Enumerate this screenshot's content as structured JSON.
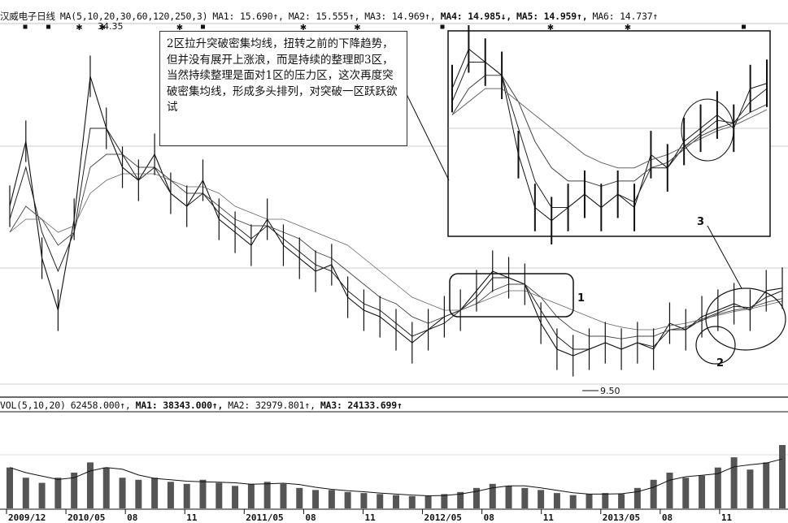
{
  "price_header": {
    "title": "汉威电子日线",
    "ma_spec": "MA(5,10,20,30,60,120,250,3)",
    "ma1": "MA1: 15.690↑,",
    "ma2": "MA2: 15.555↑,",
    "ma3": "MA3: 14.969↑,",
    "ma4": "MA4: 14.985↓,",
    "ma5": "MA5: 14.959↑,",
    "ma6": "MA6: 14.737↑"
  },
  "vol_header": {
    "spec": "VOL(5,10,20)",
    "value": "62458.000↑,",
    "ma1": "MA1: 38343.000↑,",
    "ma2": "MA2: 32979.801↑,",
    "ma3": "MA3: 24133.699↑"
  },
  "annotation": {
    "text": "2区拉升突破密集均线，扭转之前的下降趋势，但并没有展开上涨浪，而是持续的整理即3区，当然持续整理是面对1区的压力区，这次再度突破密集均线，形成多头排列，对突破一区跃跃欲试"
  },
  "labels": {
    "zone1": "1",
    "zone2": "2",
    "zone3": "3",
    "high": "34.35",
    "low": "9.50"
  },
  "x_axis": {
    "ticks": [
      "2009/12",
      "2010/05",
      "08",
      "11",
      "2011/05",
      "08",
      "11",
      "2012/05",
      "08",
      "11",
      "2013/05",
      "08",
      "11"
    ]
  },
  "colors": {
    "line": "#111111",
    "grid": "#9a9a9a",
    "mark": "#111111"
  },
  "chart_data": {
    "type": "line",
    "title": "汉威电子日线",
    "x": [
      "2009/12",
      "2010/01",
      "2010/02",
      "2010/03",
      "2010/04",
      "2010/05",
      "2010/06",
      "2010/07",
      "2010/08",
      "2010/09",
      "2010/10",
      "2010/11",
      "2010/12",
      "2011/01",
      "2011/02",
      "2011/03",
      "2011/04",
      "2011/05",
      "2011/06",
      "2011/07",
      "2011/08",
      "2011/09",
      "2011/10",
      "2011/11",
      "2011/12",
      "2012/01",
      "2012/02",
      "2012/03",
      "2012/04",
      "2012/05",
      "2012/06",
      "2012/07",
      "2012/08",
      "2012/09",
      "2012/10",
      "2012/11",
      "2012/12",
      "2013/01",
      "2013/02",
      "2013/03",
      "2013/04",
      "2013/05",
      "2013/06",
      "2013/07",
      "2013/08",
      "2013/09",
      "2013/10",
      "2013/11",
      "2013/12"
    ],
    "series": [
      {
        "values": [
          22,
          27,
          18,
          14,
          21,
          32,
          28,
          25,
          24,
          26,
          23,
          22,
          24,
          21,
          20,
          19,
          21,
          19,
          18,
          17,
          17.5,
          15,
          14,
          13.5,
          12.5,
          11.5,
          12.5,
          13.5,
          14,
          15.5,
          17,
          16.5,
          16,
          13,
          11,
          10.5,
          11,
          11.5,
          11,
          11.5,
          11,
          13,
          12.5,
          13.5,
          14,
          14.5,
          14,
          15.5,
          15.7
        ]
      },
      {
        "values": [
          21,
          25,
          20,
          17,
          20,
          28,
          28,
          26,
          24,
          25,
          23,
          22,
          23,
          21.5,
          20.5,
          19.5,
          20.5,
          19.5,
          18.5,
          17.5,
          17,
          15.5,
          14.5,
          14,
          13,
          12,
          12.5,
          13,
          14,
          15,
          16.5,
          16.5,
          16,
          14,
          12,
          11,
          11,
          11.5,
          11,
          11.5,
          11.2,
          12.5,
          12.5,
          13.3,
          13.8,
          14.3,
          14.2,
          15,
          15.5
        ]
      },
      {
        "values": [
          20,
          22,
          21,
          19,
          20,
          25,
          26,
          26,
          25,
          25,
          24,
          23,
          23,
          22,
          21,
          20.5,
          20.5,
          20,
          19.5,
          18.5,
          18,
          17,
          16,
          15,
          14.5,
          13.5,
          13,
          13.5,
          14,
          14.5,
          15.5,
          16,
          16,
          15,
          13.5,
          12.5,
          12,
          12,
          11.8,
          12,
          12,
          12.5,
          12.7,
          13.2,
          13.7,
          14,
          14.2,
          14.6,
          14.9
        ]
      },
      {
        "values": [
          20,
          21,
          21,
          20,
          20.5,
          23,
          24,
          24.5,
          24.5,
          24.5,
          24,
          23.5,
          23.5,
          23,
          22,
          21.5,
          21,
          21,
          20.5,
          20,
          19.5,
          19,
          18,
          17,
          16,
          15,
          14.5,
          14,
          14,
          14.5,
          15,
          15.5,
          15.5,
          15,
          14.5,
          14,
          13.5,
          13,
          12.7,
          12.5,
          12.5,
          12.8,
          13,
          13.3,
          13.6,
          13.9,
          14.1,
          14.4,
          14.7
        ]
      }
    ],
    "ylim": [
      8,
      36
    ],
    "volume": {
      "title": "VOL(5,10,20)",
      "values": [
        40,
        30,
        25,
        30,
        35,
        45,
        40,
        30,
        28,
        30,
        26,
        24,
        28,
        25,
        22,
        24,
        26,
        24,
        20,
        18,
        18,
        16,
        15,
        14,
        13,
        12,
        12,
        14,
        16,
        20,
        24,
        22,
        20,
        18,
        15,
        13,
        14,
        15,
        14,
        20,
        28,
        35,
        30,
        32,
        40,
        50,
        38,
        45,
        62
      ]
    }
  }
}
